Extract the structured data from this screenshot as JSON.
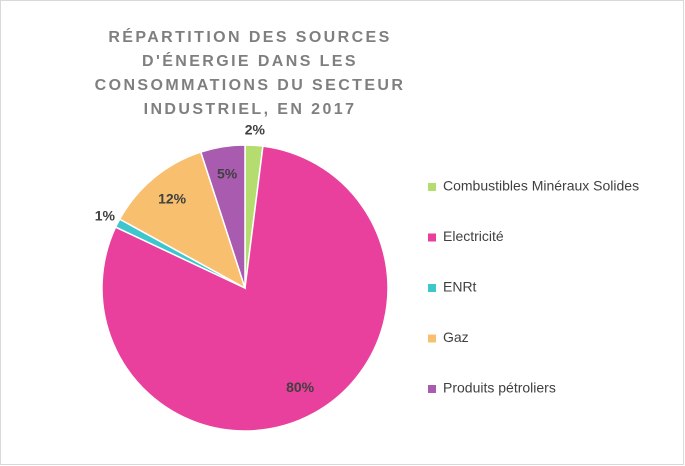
{
  "chart_data": {
    "type": "pie",
    "title": "RÉPARTITION DES SOURCES D'ÉNERGIE DANS LES CONSOMMATIONS DU SECTEUR INDUSTRIEL, EN 2017",
    "categories": [
      "Combustibles Minéraux Solides",
      "Electricité",
      "ENRt",
      "Gaz",
      "Produits pétroliers"
    ],
    "values": [
      2,
      80,
      1,
      12,
      5
    ],
    "value_labels": [
      "2%",
      "80%",
      "1%",
      "12%",
      "5%"
    ],
    "colors": [
      "#b4dc6e",
      "#e8409c",
      "#3ec6cf",
      "#f8c06e",
      "#a95bb0"
    ],
    "legend": "right"
  }
}
